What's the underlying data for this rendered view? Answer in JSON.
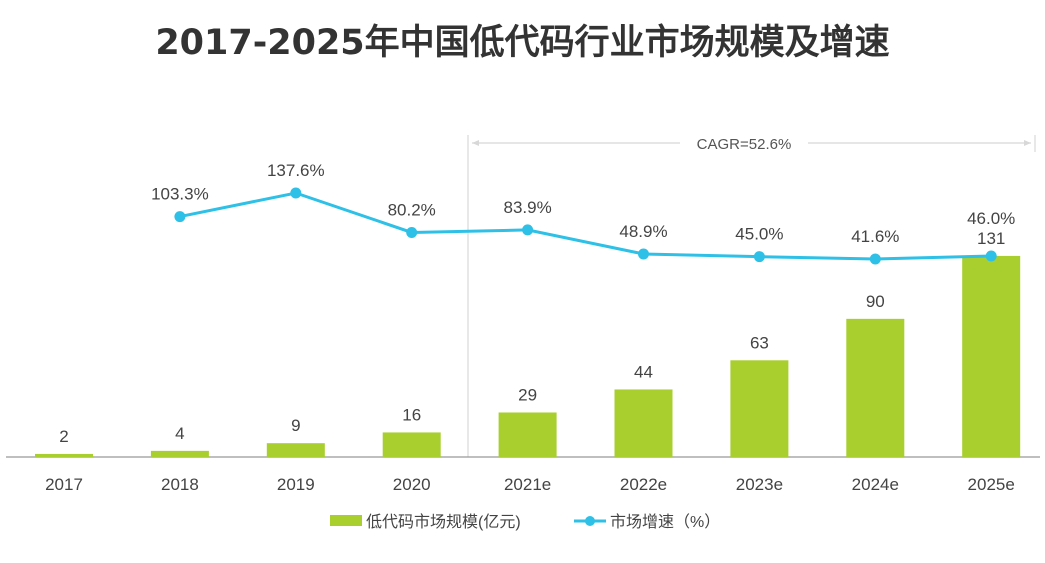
{
  "chart_data": {
    "type": "bar+line",
    "title": "2017-2025年中国低代码行业市场规模及增速",
    "categories": [
      "2017",
      "2018",
      "2019",
      "2020",
      "2021e",
      "2022e",
      "2023e",
      "2024e",
      "2025e"
    ],
    "series": [
      {
        "name": "低代码市场规模(亿元)",
        "type": "bar",
        "color": "#a8cf2e",
        "values": [
          2,
          4,
          9,
          16,
          29,
          44,
          63,
          90,
          131
        ],
        "labels": [
          "2",
          "4",
          "9",
          "16",
          "29",
          "44",
          "63",
          "90",
          "131"
        ]
      },
      {
        "name": "市场增速（%）",
        "type": "line",
        "color": "#2ec0e6",
        "values": [
          null,
          103.3,
          137.6,
          80.2,
          83.9,
          48.9,
          45.0,
          41.6,
          46.0
        ],
        "labels": [
          "",
          "103.3%",
          "137.6%",
          "80.2%",
          "83.9%",
          "48.9%",
          "45.0%",
          "41.6%",
          "46.0%"
        ]
      }
    ],
    "annotation": "CAGR=52.6%",
    "grid": false,
    "legend_position": "bottom"
  }
}
